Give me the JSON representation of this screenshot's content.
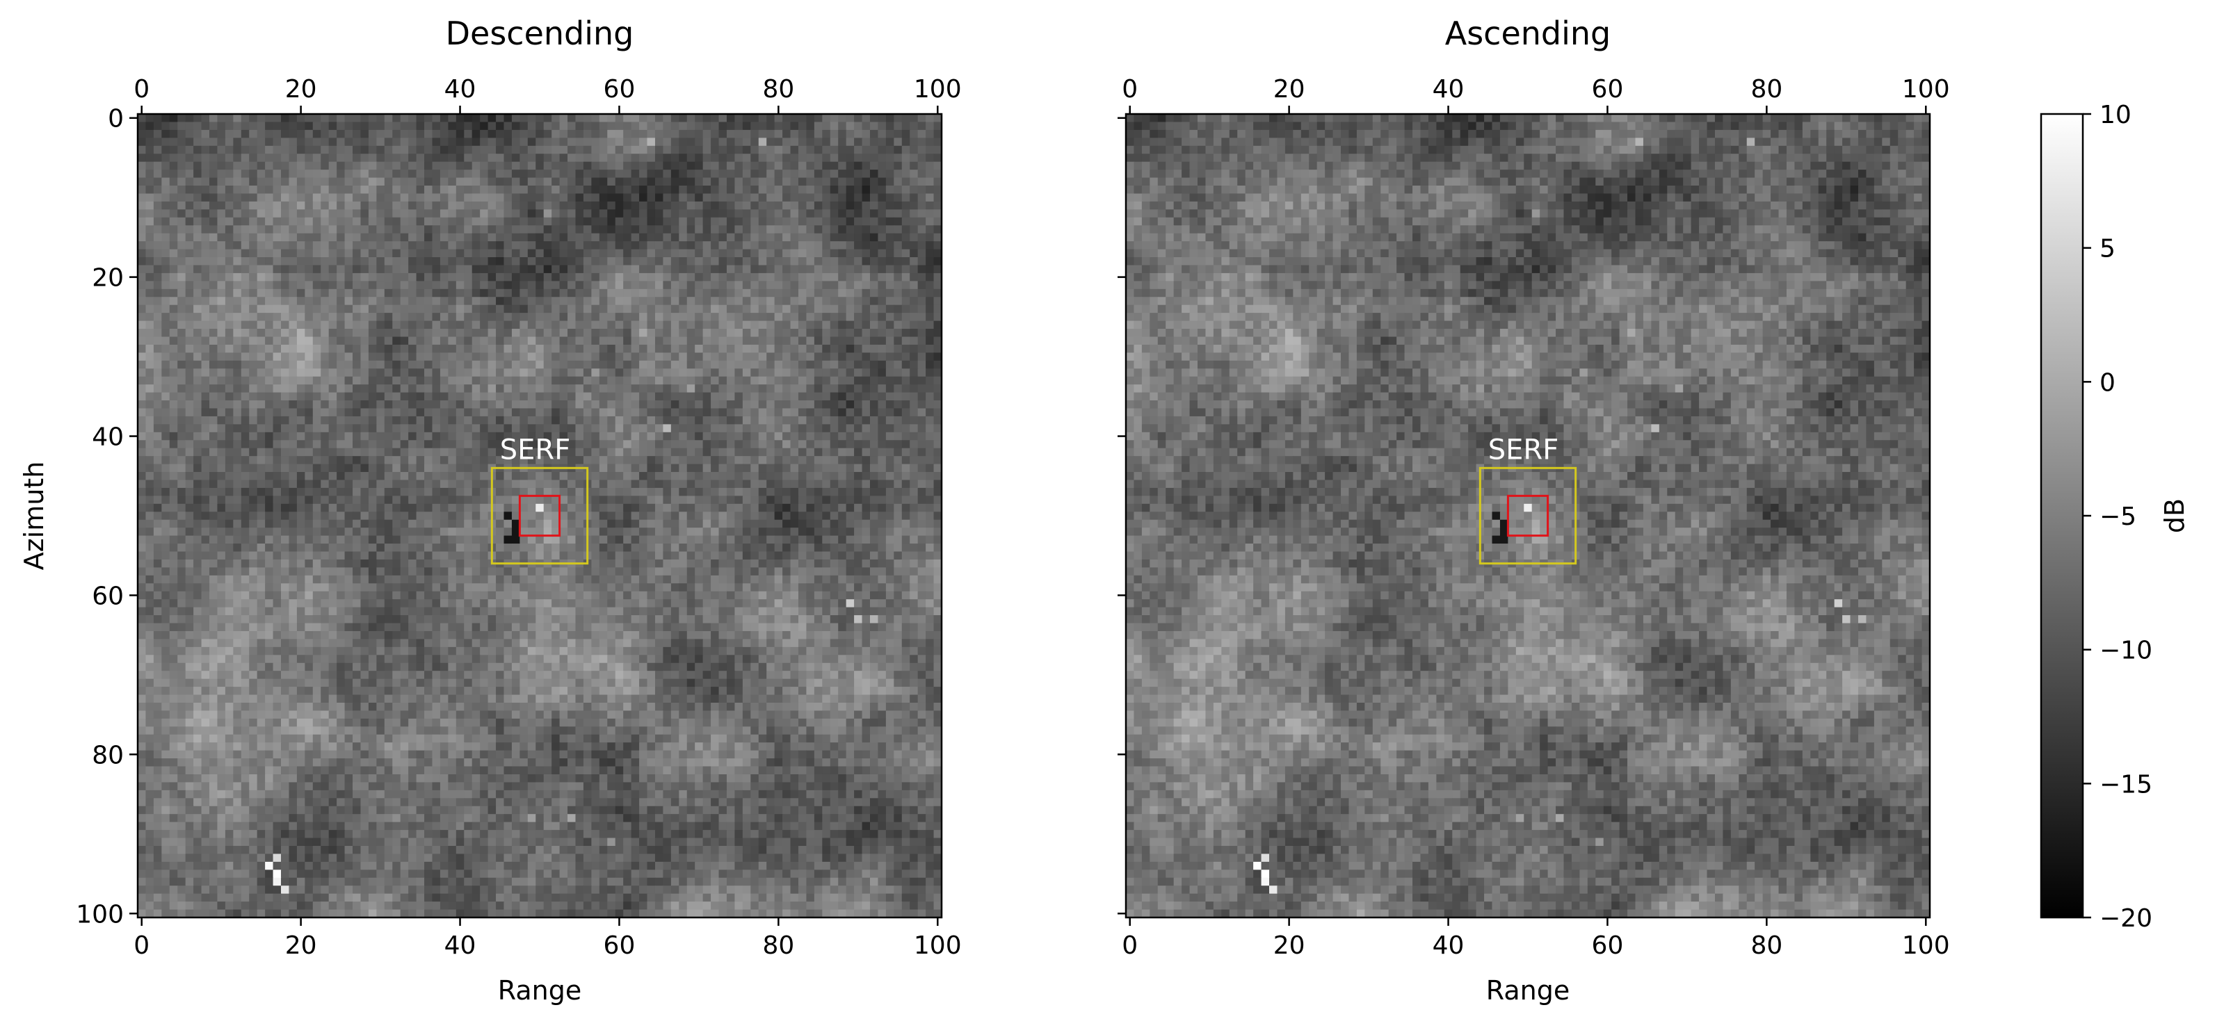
{
  "chart_data": [
    {
      "type": "heatmap",
      "title": "Descending",
      "xlabel": "Range",
      "ylabel": "Azimuth",
      "xlim": [
        0,
        101
      ],
      "ylim": [
        101,
        0
      ],
      "xticks": [
        0,
        20,
        40,
        60,
        80,
        100
      ],
      "yticks": [
        0,
        20,
        40,
        60,
        80,
        100
      ],
      "xtick_position": "top and bottom",
      "grid": false,
      "colormap": "gray",
      "annotations": [
        {
          "type": "rectangle",
          "color": "#d4c81e",
          "x": [
            44,
            56
          ],
          "y": [
            44,
            56
          ]
        },
        {
          "type": "rectangle",
          "color": "#e0141a",
          "x": [
            47.5,
            52.5
          ],
          "y": [
            47.5,
            52.5
          ]
        },
        {
          "type": "text",
          "text": "SERF",
          "x": 45,
          "y": 42
        }
      ]
    },
    {
      "type": "heatmap",
      "title": "Ascending",
      "xlabel": "Range",
      "ylabel": "",
      "xlim": [
        0,
        101
      ],
      "ylim": [
        101,
        0
      ],
      "xticks": [
        0,
        20,
        40,
        60,
        80,
        100
      ],
      "yticks": [
        0,
        20,
        40,
        60,
        80,
        100
      ],
      "ytick_labels_shown": false,
      "xtick_position": "top and bottom",
      "grid": false,
      "colormap": "gray",
      "annotations": [
        {
          "type": "rectangle",
          "color": "#d4c81e",
          "x": [
            44,
            56
          ],
          "y": [
            44,
            56
          ]
        },
        {
          "type": "rectangle",
          "color": "#e0141a",
          "x": [
            47.5,
            52.5
          ],
          "y": [
            47.5,
            52.5
          ]
        },
        {
          "type": "text",
          "text": "SERF",
          "x": 45,
          "y": 42
        }
      ]
    }
  ],
  "colorbar": {
    "label": "dB",
    "range": [
      -20,
      10
    ],
    "ticks": [
      "10",
      "5",
      "0",
      "−5",
      "−10",
      "−15",
      "−20"
    ],
    "tick_values": [
      10,
      5,
      0,
      -5,
      -10,
      -15,
      -20
    ]
  }
}
